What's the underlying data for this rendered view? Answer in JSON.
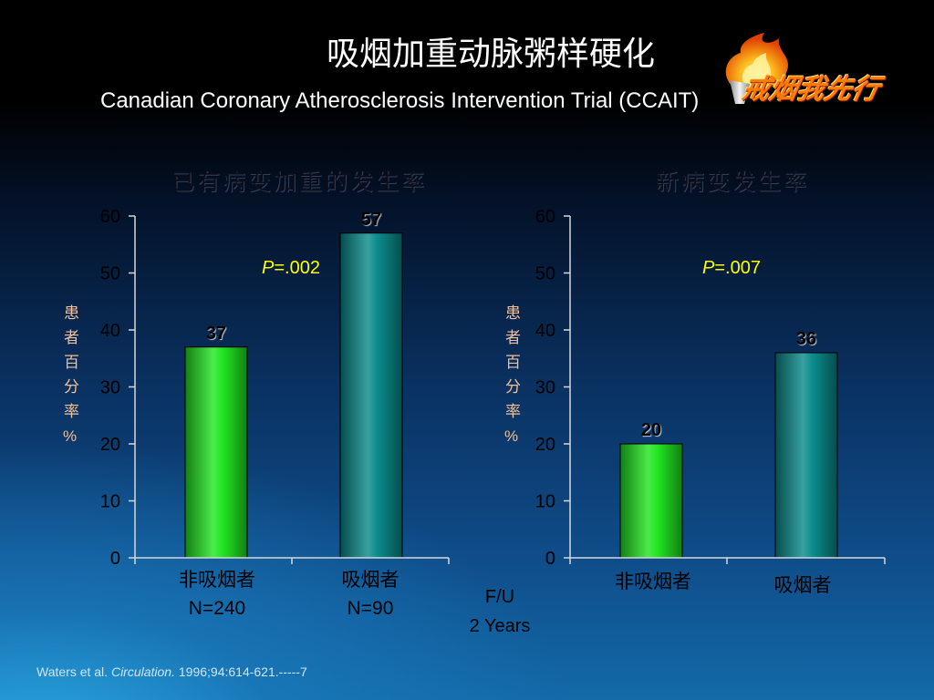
{
  "slide": {
    "title": "吸烟加重动脉粥样硬化",
    "subtitle": "Canadian Coronary Atherosclerosis Intervention Trial (CCAIT)",
    "logo": {
      "text": "戒烟我先行",
      "icon": "torch-flame-icon"
    },
    "follow_up": {
      "line1": "F/U",
      "line2": "2 Years"
    },
    "citation": {
      "authors": "Waters et al. ",
      "journal": "Circulation.",
      "details": " 1996;94:614-621.-----7"
    }
  },
  "colors": {
    "title": "#ffffff",
    "nonsmoker_bar": "#22e622",
    "smoker_bar": "#0b8c8c",
    "annotation": "#ffff00",
    "axis": "#d8d8d8"
  },
  "chart_data": [
    {
      "type": "bar",
      "title": "已有病变加重的发生率",
      "ylabel": "患者百分率%",
      "ylim": [
        0,
        60
      ],
      "yticks": [
        0,
        10,
        20,
        30,
        40,
        50,
        60
      ],
      "categories": [
        "非吸烟者",
        "吸烟者"
      ],
      "category_sublabels": [
        "N=240",
        "N=90"
      ],
      "values": [
        37,
        57
      ],
      "annotation": {
        "symbol": "P",
        "text": "=.002"
      },
      "grid": false
    },
    {
      "type": "bar",
      "title": "新病变发生率",
      "ylabel": "患者百分率%",
      "ylim": [
        0,
        60
      ],
      "yticks": [
        0,
        10,
        20,
        30,
        40,
        50,
        60
      ],
      "categories": [
        "非吸烟者",
        "吸烟者"
      ],
      "values": [
        20,
        36
      ],
      "annotation": {
        "symbol": "P",
        "text": "=.007"
      },
      "grid": false
    }
  ]
}
